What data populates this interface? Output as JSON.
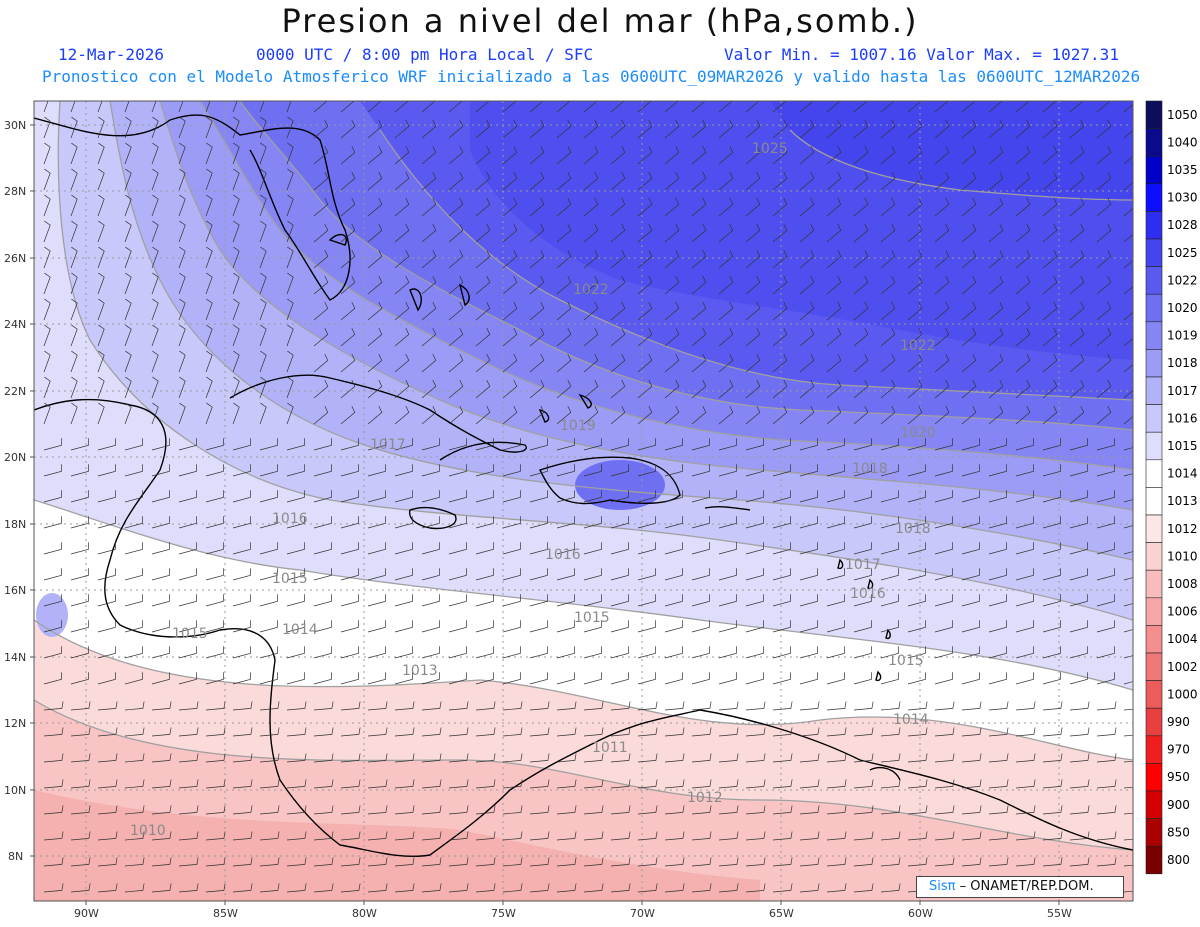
{
  "title": "Presion a nivel del mar (hPa,somb.)",
  "header": {
    "date": "12-Mar-2026",
    "time": "0000 UTC / 8:00 pm Hora Local / SFC",
    "min_max": "Valor Min. = 1007.16  Valor Max. = 1027.31",
    "forecast": "Pronostico con el Modelo Atmosferico WRF inicializado a las 0600UTC_09MAR2026 y valido hasta las  0600UTC_12MAR2026"
  },
  "axes": {
    "lat_labels": [
      "30N",
      "28N",
      "26N",
      "24N",
      "22N",
      "20N",
      "18N",
      "16N",
      "14N",
      "12N",
      "10N",
      "8N"
    ],
    "lon_labels": [
      "90W",
      "85W",
      "80W",
      "75W",
      "70W",
      "65W",
      "60W",
      "55W"
    ]
  },
  "contour_labels": [
    "1025",
    "1022",
    "1022",
    "1020",
    "1019",
    "1018",
    "1018",
    "1017",
    "1017",
    "1016",
    "1016",
    "1016",
    "1015",
    "1015",
    "1015",
    "1015",
    "1014",
    "1014",
    "1013",
    "1012",
    "1011",
    "1010"
  ],
  "colorbar": {
    "levels": [
      "1050",
      "1040",
      "1035",
      "1030",
      "1028",
      "1025",
      "1022",
      "1020",
      "1019",
      "1018",
      "1017",
      "1016",
      "1015",
      "1014",
      "1013",
      "1012",
      "1010",
      "1008",
      "1006",
      "1004",
      "1002",
      "1000",
      "990",
      "970",
      "950",
      "900",
      "850",
      "800"
    ],
    "colors": [
      "#0d0d5c",
      "#0a0a8f",
      "#0000c8",
      "#0d0dff",
      "#2e2ef0",
      "#4545ee",
      "#5a5af0",
      "#6f6ff2",
      "#8585f4",
      "#9c9cf6",
      "#b2b2f8",
      "#c8c8fa",
      "#dedefc",
      "#ffffff",
      "#ffffff",
      "#fde6e6",
      "#fbd2d2",
      "#f9bcbc",
      "#f6a6a6",
      "#f38f8f",
      "#f07878",
      "#ec5c5c",
      "#e84040",
      "#f01e1e",
      "#ff0000",
      "#d40000",
      "#aa0000",
      "#7a0000"
    ]
  },
  "logo": {
    "brand": "Sisπ",
    "text": "– ONAMET/REP.DOM."
  }
}
